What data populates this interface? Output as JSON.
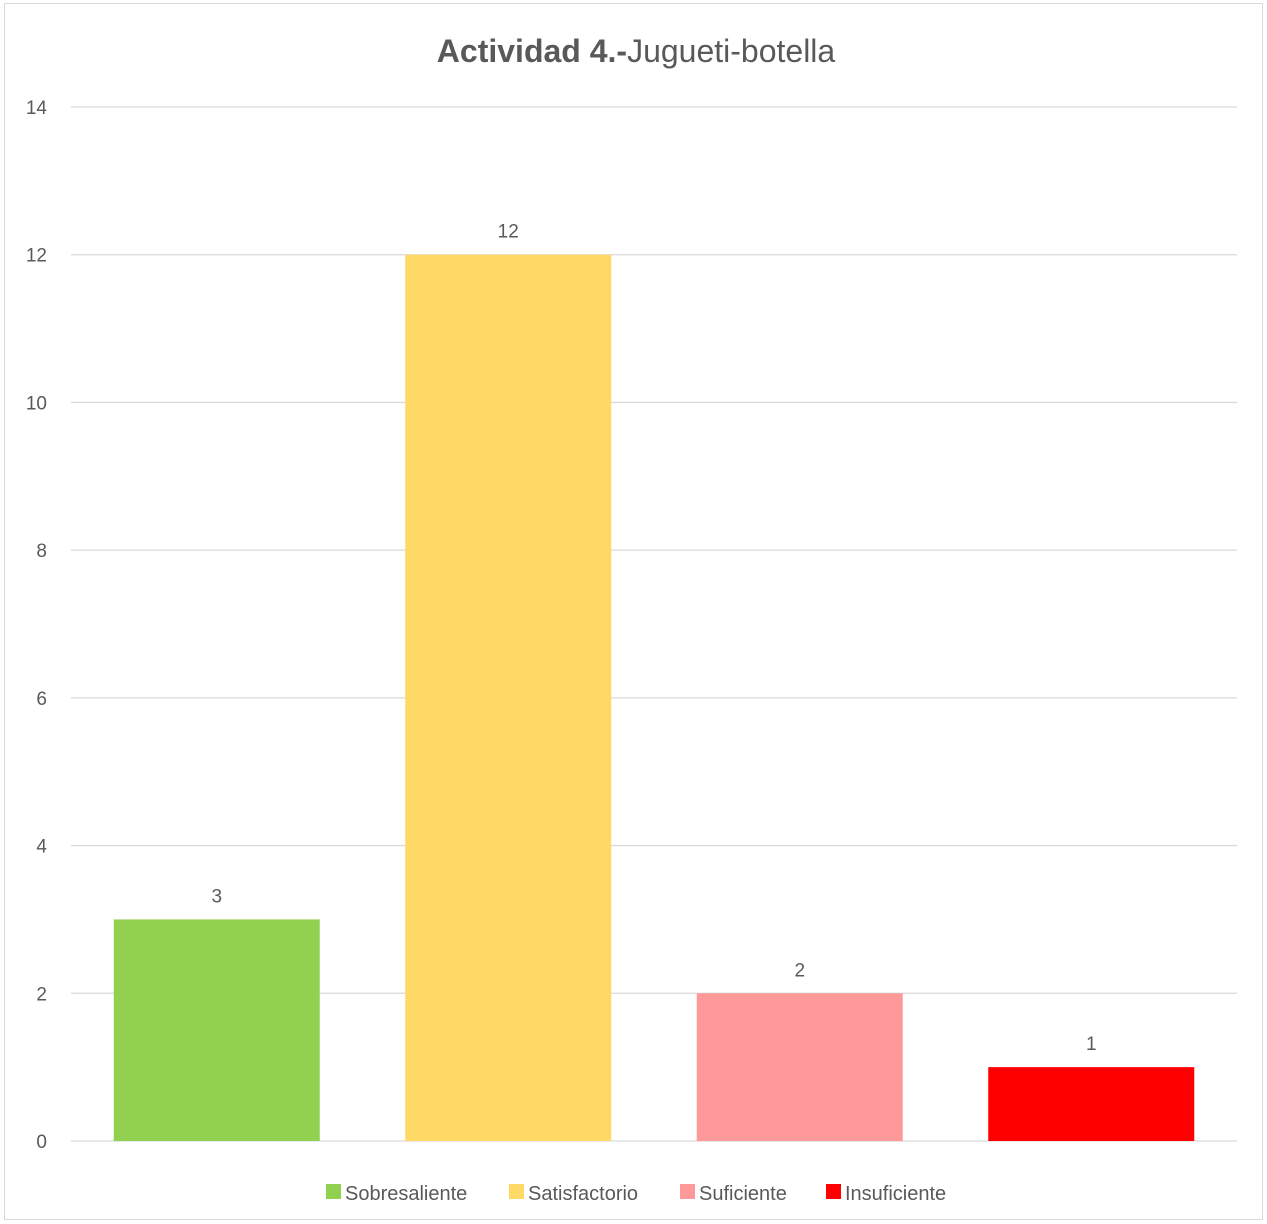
{
  "chart_data": {
    "type": "bar",
    "title_bold": "Actividad 4.-",
    "title_regular": "Jugueti-botella",
    "categories": [
      "Sobresaliente",
      "Satisfactorio",
      "Suficiente",
      "Insuficiente"
    ],
    "values": [
      3,
      12,
      2,
      1
    ],
    "colors": [
      "#92d050",
      "#ffd966",
      "#ff9999",
      "#ff0000"
    ],
    "data_labels": [
      "3",
      "12",
      "2",
      "1"
    ],
    "ylim": [
      0,
      14
    ],
    "yticks": [
      "0",
      "2",
      "4",
      "6",
      "8",
      "10",
      "12",
      "14"
    ],
    "grid": true,
    "legend_position": "bottom",
    "xlabel": "",
    "ylabel": ""
  }
}
